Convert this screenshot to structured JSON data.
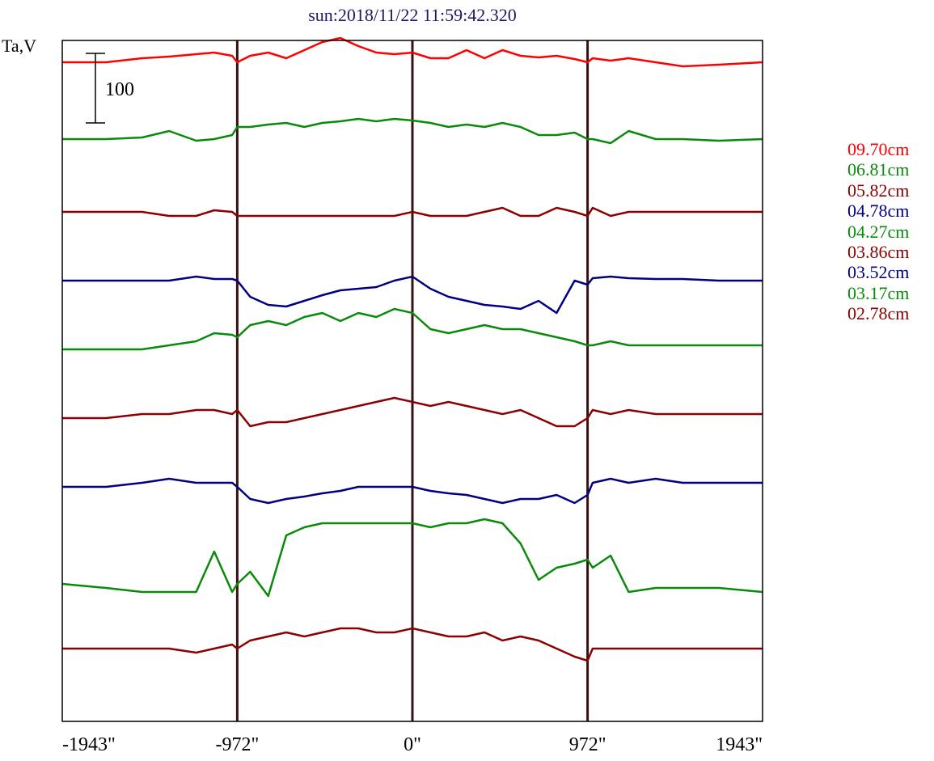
{
  "title": "sun:2018/11/22 11:59:42.320",
  "chart_data": {
    "type": "line",
    "ylabel": "Ta,V",
    "scale_bar_label": "100",
    "scale_bar_value": 100,
    "xlim": [
      -1943,
      1943
    ],
    "x_ticks": [
      -1943,
      -972,
      0,
      972,
      1943
    ],
    "x_tick_labels": [
      "-1943\"",
      "-972\"",
      "0\"",
      "972\"",
      "1943\""
    ],
    "vertical_lines_at": [
      -972,
      0,
      972
    ],
    "x": [
      -1943,
      -1700,
      -1500,
      -1350,
      -1200,
      -1100,
      -1000,
      -972,
      -900,
      -800,
      -700,
      -600,
      -500,
      -400,
      -300,
      -200,
      -100,
      0,
      100,
      200,
      300,
      400,
      500,
      600,
      700,
      800,
      900,
      972,
      1000,
      1100,
      1200,
      1350,
      1500,
      1700,
      1943
    ],
    "series": [
      {
        "name": "09.70cm",
        "color": "#ff0000",
        "offset": 815,
        "values": [
          0,
          0,
          5,
          7,
          10,
          12,
          8,
          0,
          8,
          12,
          5,
          15,
          25,
          30,
          20,
          12,
          10,
          12,
          5,
          5,
          15,
          5,
          15,
          8,
          6,
          8,
          4,
          0,
          5,
          2,
          5,
          0,
          -5,
          -3,
          0
        ]
      },
      {
        "name": "06.81cm",
        "color": "#0a8a0a",
        "offset": 720,
        "values": [
          0,
          0,
          2,
          10,
          -2,
          0,
          5,
          15,
          15,
          18,
          20,
          15,
          20,
          22,
          25,
          22,
          25,
          23,
          20,
          15,
          18,
          15,
          20,
          15,
          5,
          5,
          8,
          0,
          0,
          -5,
          10,
          0,
          0,
          -2,
          0
        ]
      },
      {
        "name": "05.82cm",
        "color": "#8b0000",
        "offset": 630,
        "values": [
          0,
          0,
          0,
          -5,
          -5,
          2,
          0,
          -5,
          -5,
          -5,
          -5,
          -5,
          -5,
          -5,
          -5,
          -5,
          -5,
          0,
          -5,
          -5,
          -5,
          0,
          5,
          -5,
          -5,
          5,
          0,
          -5,
          5,
          -5,
          0,
          0,
          0,
          0,
          0
        ]
      },
      {
        "name": "04.78cm",
        "color": "#000080",
        "offset": 545,
        "values": [
          0,
          0,
          0,
          0,
          5,
          2,
          2,
          0,
          -20,
          -30,
          -32,
          -25,
          -18,
          -12,
          -10,
          -8,
          0,
          5,
          -10,
          -20,
          -25,
          -30,
          -32,
          -35,
          -25,
          -40,
          0,
          -5,
          3,
          5,
          3,
          2,
          2,
          0,
          0
        ]
      },
      {
        "name": "04.27cm",
        "color": "#0a8a0a",
        "offset": 460,
        "values": [
          0,
          0,
          0,
          5,
          10,
          20,
          18,
          15,
          30,
          35,
          30,
          40,
          45,
          35,
          45,
          40,
          50,
          45,
          25,
          20,
          25,
          30,
          25,
          25,
          20,
          15,
          10,
          5,
          5,
          10,
          5,
          5,
          5,
          5,
          5
        ]
      },
      {
        "name": "03.86cm",
        "color": "#8b0000",
        "offset": 375,
        "values": [
          0,
          0,
          5,
          5,
          10,
          10,
          5,
          10,
          -10,
          -5,
          -5,
          0,
          5,
          10,
          15,
          20,
          25,
          20,
          15,
          20,
          15,
          10,
          5,
          10,
          0,
          -10,
          -10,
          0,
          10,
          5,
          10,
          5,
          5,
          5,
          5
        ]
      },
      {
        "name": "03.52cm",
        "color": "#000080",
        "offset": 290,
        "values": [
          0,
          0,
          5,
          10,
          5,
          5,
          5,
          0,
          -15,
          -20,
          -15,
          -12,
          -8,
          -5,
          0,
          0,
          0,
          0,
          -5,
          -8,
          -10,
          -15,
          -20,
          -15,
          -15,
          -10,
          -20,
          -10,
          5,
          10,
          5,
          10,
          5,
          5,
          5
        ]
      },
      {
        "name": "03.17cm",
        "color": "#0a8a0a",
        "offset": 170,
        "values": [
          0,
          -5,
          -10,
          -10,
          -10,
          40,
          -10,
          0,
          15,
          -15,
          60,
          70,
          75,
          75,
          75,
          75,
          75,
          75,
          70,
          75,
          75,
          80,
          75,
          50,
          5,
          20,
          25,
          30,
          20,
          35,
          -10,
          -5,
          -5,
          -5,
          -10
        ]
      },
      {
        "name": "02.78cm",
        "color": "#8b0000",
        "offset": 90,
        "values": [
          0,
          0,
          0,
          0,
          -5,
          0,
          5,
          0,
          10,
          15,
          20,
          15,
          20,
          25,
          25,
          20,
          20,
          25,
          20,
          15,
          15,
          20,
          10,
          15,
          10,
          0,
          -10,
          -15,
          0,
          0,
          0,
          0,
          0,
          0,
          0
        ]
      }
    ]
  }
}
